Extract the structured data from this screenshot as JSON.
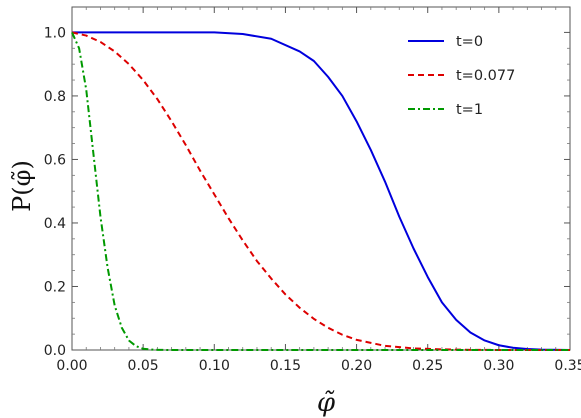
{
  "chart_data": {
    "type": "line",
    "xlabel": "φ̃",
    "ylabel": "P(φ̃)",
    "xlim": [
      0.0,
      0.35
    ],
    "ylim": [
      0.0,
      1.08
    ],
    "x_ticks": [
      "0.00",
      "0.05",
      "0.10",
      "0.15",
      "0.20",
      "0.25",
      "0.30",
      "0.35"
    ],
    "y_ticks": [
      "0.0",
      "0.2",
      "0.4",
      "0.6",
      "0.8",
      "1.0"
    ],
    "grid": false,
    "legend_position": "top-right",
    "series": [
      {
        "name": "t=0",
        "color": "#0000dd",
        "style": "solid",
        "x": [
          0.0,
          0.05,
          0.1,
          0.12,
          0.14,
          0.16,
          0.17,
          0.18,
          0.19,
          0.2,
          0.21,
          0.22,
          0.23,
          0.24,
          0.25,
          0.26,
          0.27,
          0.28,
          0.29,
          0.3,
          0.31,
          0.32,
          0.33,
          0.35
        ],
        "y": [
          1.0,
          1.0,
          1.0,
          0.995,
          0.98,
          0.94,
          0.91,
          0.86,
          0.8,
          0.72,
          0.63,
          0.53,
          0.42,
          0.32,
          0.23,
          0.15,
          0.095,
          0.055,
          0.03,
          0.015,
          0.007,
          0.003,
          0.001,
          0.0
        ]
      },
      {
        "name": "t=0.077",
        "color": "#dd0000",
        "style": "dashed",
        "x": [
          0.0,
          0.01,
          0.02,
          0.03,
          0.04,
          0.05,
          0.06,
          0.07,
          0.08,
          0.09,
          0.1,
          0.11,
          0.12,
          0.13,
          0.14,
          0.15,
          0.16,
          0.17,
          0.18,
          0.19,
          0.2,
          0.22,
          0.24,
          0.26,
          0.28,
          0.3,
          0.35
        ],
        "y": [
          1.0,
          0.99,
          0.97,
          0.94,
          0.9,
          0.85,
          0.79,
          0.72,
          0.645,
          0.565,
          0.49,
          0.415,
          0.345,
          0.28,
          0.225,
          0.175,
          0.133,
          0.098,
          0.07,
          0.048,
          0.032,
          0.013,
          0.005,
          0.002,
          0.0005,
          0.0001,
          0.0
        ]
      },
      {
        "name": "t=1",
        "color": "#009900",
        "style": "dashdot",
        "x": [
          0.0,
          0.005,
          0.01,
          0.015,
          0.02,
          0.025,
          0.03,
          0.035,
          0.04,
          0.045,
          0.05,
          0.055,
          0.06,
          0.07,
          0.1,
          0.35
        ],
        "y": [
          1.0,
          0.95,
          0.82,
          0.62,
          0.42,
          0.26,
          0.14,
          0.07,
          0.03,
          0.012,
          0.004,
          0.0015,
          0.0005,
          0.0,
          0.0,
          0.0
        ]
      }
    ]
  }
}
